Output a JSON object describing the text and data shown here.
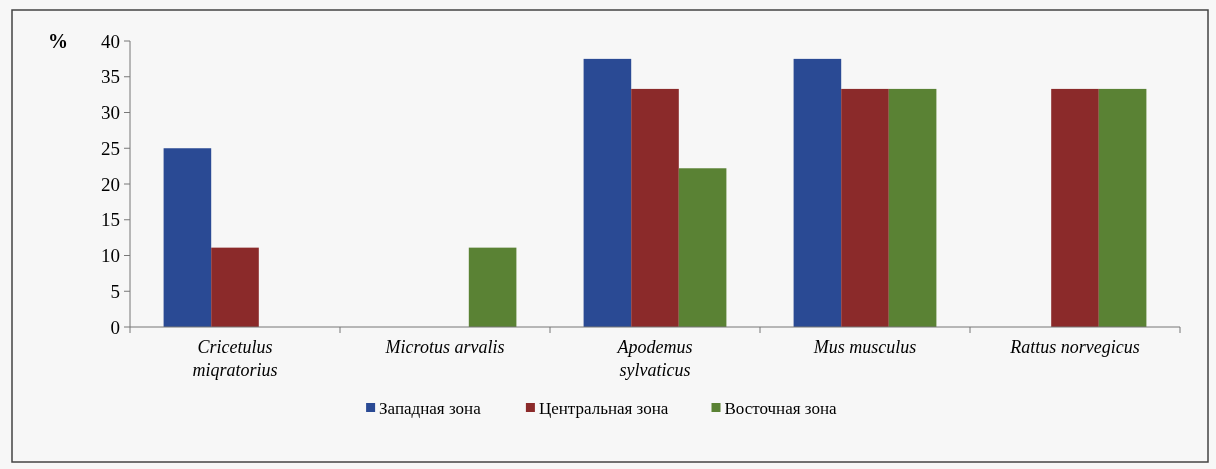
{
  "chart_data": {
    "type": "bar",
    "ylabel": "%",
    "categories": [
      "Cricetulus miqratorius",
      "Microtus arvalis",
      "Apodemus sylvaticus",
      "Mus musculus",
      "Rattus  norvegicus"
    ],
    "series": [
      {
        "name": "Западная зона",
        "color": "#2a4a94",
        "values": [
          25,
          null,
          37.5,
          37.5,
          null
        ]
      },
      {
        "name": "Центральная зона",
        "color": "#8b2a2a",
        "values": [
          11.1,
          null,
          33.3,
          33.3,
          33.3
        ]
      },
      {
        "name": "Восточная зона",
        "color": "#5a8234",
        "values": [
          null,
          11.1,
          22.2,
          33.3,
          33.3
        ]
      }
    ],
    "ylim": [
      0,
      40
    ],
    "yticks": [
      0,
      5,
      10,
      15,
      20,
      25,
      30,
      35,
      40
    ],
    "grid": false,
    "legend": "bottom"
  }
}
